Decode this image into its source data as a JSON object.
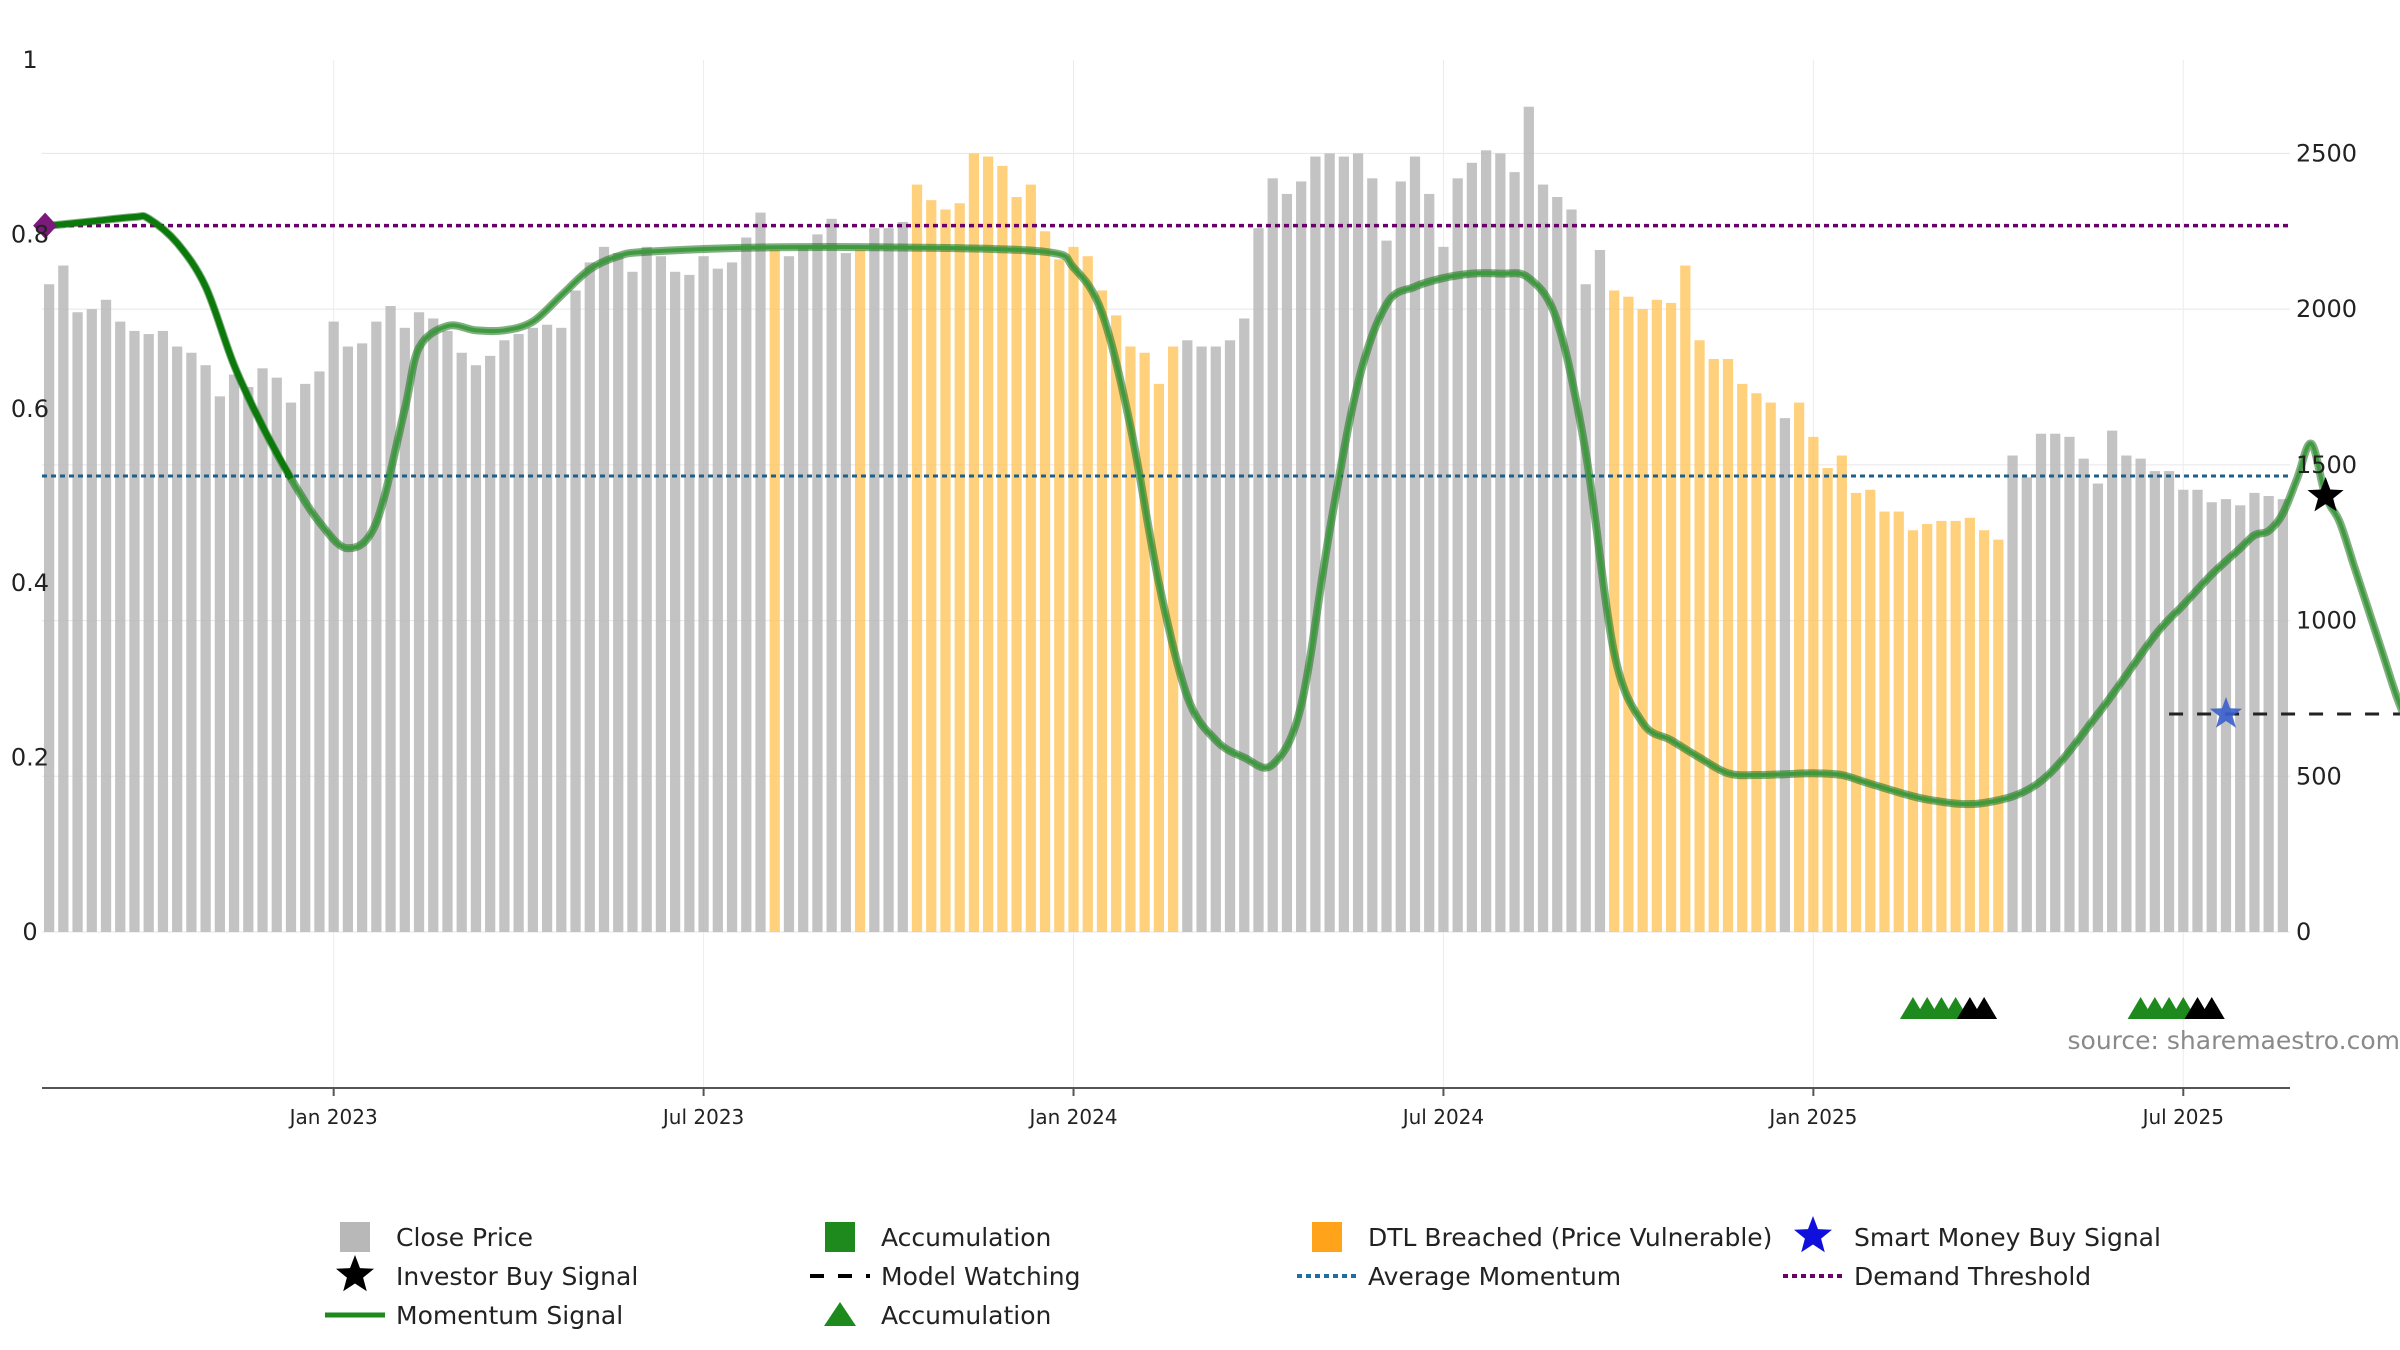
{
  "chart_data": {
    "type": "bar",
    "source_text": "source: sharemaestro.com",
    "x_ticks": [
      "Jan 2023",
      "Jul 2023",
      "Jan 2024",
      "Jul 2024",
      "Jan 2025",
      "Jul 2025"
    ],
    "x_tick_weeks": [
      20,
      46,
      72,
      98,
      124,
      150
    ],
    "left_axis": {
      "ticks": [
        "0",
        "0.2",
        "0.4",
        "0.6",
        "0.8",
        "1"
      ],
      "ylim": [
        0,
        1
      ]
    },
    "right_axis": {
      "ticks": [
        "0",
        "500",
        "1000",
        "1500",
        "2000",
        "2500"
      ],
      "ylim": [
        0,
        2800
      ]
    },
    "colors": {
      "close": "#b8b8b8",
      "accumulation": "#1e8a1e",
      "dtl": "#ffc65c",
      "momentum": "#2e8b2e",
      "average": "#1f5f8b",
      "demand": "#6a006a",
      "smart_money": "#1010dd",
      "investor": "#000000"
    },
    "bar_status_codes": {
      "g": "Close Price",
      "a": "Accumulation",
      "d": "DTL Breached (Price Vulnerable)"
    },
    "close_price": [
      2080,
      2140,
      1990,
      2000,
      2030,
      1960,
      1930,
      1920,
      1930,
      1880,
      1860,
      1820,
      1720,
      1790,
      1750,
      1810,
      1780,
      1700,
      1760,
      1800,
      1960,
      1880,
      1890,
      1960,
      2010,
      1940,
      1990,
      1970,
      1930,
      1860,
      1820,
      1850,
      1900,
      1920,
      1940,
      1950,
      1940,
      2060,
      2150,
      2200,
      2180,
      2120,
      2200,
      2170,
      2120,
      2110,
      2170,
      2130,
      2150,
      2230,
      2310,
      2190,
      2170,
      2200,
      2240,
      2290,
      2180,
      2190,
      2260,
      2260,
      2280,
      2400,
      2350,
      2320,
      2340,
      2500,
      2490,
      2460,
      2360,
      2400,
      2250,
      2160,
      2200,
      2170,
      2060,
      1980,
      1880,
      1860,
      1760,
      1880,
      1900,
      1880,
      1880,
      1900,
      1970,
      2260,
      2420,
      2370,
      2410,
      2490,
      2500,
      2490,
      2500,
      2420,
      2220,
      2410,
      2490,
      2370,
      2200,
      2420,
      2470,
      2510,
      2500,
      2440,
      2650,
      2400,
      2360,
      2320,
      2080,
      2190,
      2060,
      2040,
      2000,
      2030,
      2020,
      2140,
      1900,
      1840,
      1840,
      1760,
      1730,
      1700,
      1650,
      1700,
      1590,
      1490,
      1530,
      1410,
      1420,
      1350,
      1350,
      1290,
      1310,
      1320,
      1320,
      1330,
      1290,
      1260,
      1530,
      1460,
      1600,
      1600,
      1590,
      1520,
      1440,
      1610,
      1530,
      1520,
      1480,
      1480,
      1420,
      1420,
      1380,
      1390,
      1370,
      1410,
      1400,
      1390
    ],
    "bar_status": "gggggggggggggggggggggggggggggggggggggggggggggggggggdgggggdgggdddddddddddddddddddggggggggggggggggggggggggggggggddddddddddddgdddddddddddddddgggggggggggggggggggggaaaaaaggggggggggggggggaaaaaagggggggggg",
    "momentum_x": [
      0,
      3,
      6,
      7,
      9,
      11,
      13,
      15,
      17,
      19,
      21,
      23,
      25,
      26,
      28,
      30,
      32,
      34,
      36,
      38,
      40,
      42,
      50,
      60,
      70,
      72,
      74,
      76,
      78,
      80,
      82,
      84,
      86,
      88,
      90,
      92,
      94,
      96,
      98,
      100,
      102,
      104,
      106,
      108,
      110,
      112,
      114,
      116,
      118,
      120,
      122,
      124,
      126,
      128,
      132,
      136,
      140,
      144,
      148,
      150,
      152,
      154,
      155,
      156,
      157,
      158,
      159,
      160,
      161,
      162,
      163,
      164,
      165,
      166,
      167,
      168
    ],
    "momentum": [
      0.81,
      0.815,
      0.82,
      0.818,
      0.79,
      0.74,
      0.65,
      0.58,
      0.52,
      0.47,
      0.44,
      0.47,
      0.6,
      0.67,
      0.695,
      0.69,
      0.69,
      0.7,
      0.73,
      0.76,
      0.775,
      0.78,
      0.785,
      0.785,
      0.78,
      0.762,
      0.71,
      0.58,
      0.4,
      0.27,
      0.22,
      0.2,
      0.192,
      0.26,
      0.46,
      0.63,
      0.72,
      0.74,
      0.75,
      0.755,
      0.755,
      0.75,
      0.7,
      0.55,
      0.32,
      0.24,
      0.22,
      0.2,
      0.182,
      0.18,
      0.181,
      0.182,
      0.18,
      0.17,
      0.152,
      0.148,
      0.173,
      0.25,
      0.34,
      0.375,
      0.41,
      0.44,
      0.455,
      0.46,
      0.48,
      0.52,
      0.56,
      0.5,
      0.47,
      0.42,
      0.37,
      0.32,
      0.27,
      0.23,
      0.2,
      0.18
    ],
    "momentum_bright_until": 15,
    "average_momentum": 0.523,
    "demand_threshold": 0.81,
    "demand_marker_week": 0,
    "model_watching": {
      "level": 0.25,
      "from_week": 149,
      "to_week": 168
    },
    "smart_money_buy_signal": {
      "week": 153,
      "value": 0.25
    },
    "investor_buy_signal": {
      "week": 160,
      "value": 0.5
    },
    "accumulation_triangles": [
      {
        "week": 131,
        "color": "#1e8a1e"
      },
      {
        "week": 132,
        "color": "#1e8a1e"
      },
      {
        "week": 133,
        "color": "#1e8a1e"
      },
      {
        "week": 134,
        "color": "#1e8a1e"
      },
      {
        "week": 135,
        "color": "#000000"
      },
      {
        "week": 136,
        "color": "#000000"
      },
      {
        "week": 147,
        "color": "#1e8a1e"
      },
      {
        "week": 148,
        "color": "#1e8a1e"
      },
      {
        "week": 149,
        "color": "#1e8a1e"
      },
      {
        "week": 150,
        "color": "#1e8a1e"
      },
      {
        "week": 151,
        "color": "#000000"
      },
      {
        "week": 152,
        "color": "#000000"
      }
    ],
    "legend": [
      {
        "label": "Close Price",
        "symbol": "square",
        "color": "#b8b8b8",
        "column": 0,
        "row": 0
      },
      {
        "label": "Investor Buy Signal",
        "symbol": "star",
        "color": "#000000",
        "column": 0,
        "row": 1
      },
      {
        "label": "Momentum Signal",
        "symbol": "line",
        "color": "#1e8a1e",
        "column": 0,
        "row": 2
      },
      {
        "label": "Accumulation",
        "symbol": "square",
        "color": "#1e8a1e",
        "column": 1,
        "row": 0
      },
      {
        "label": "Model Watching",
        "symbol": "dash",
        "color": "#000000",
        "column": 1,
        "row": 1
      },
      {
        "label": "Accumulation",
        "symbol": "triangle",
        "color": "#1e8a1e",
        "column": 1,
        "row": 2
      },
      {
        "label": "DTL Breached (Price Vulnerable)",
        "symbol": "square",
        "color": "#ffa31a",
        "column": 2,
        "row": 0
      },
      {
        "label": "Average Momentum",
        "symbol": "dot-blue",
        "color": "#1f6fa0",
        "column": 2,
        "row": 1
      },
      {
        "label": "Smart Money Buy Signal",
        "symbol": "star",
        "color": "#1010dd",
        "column": 3,
        "row": 0
      },
      {
        "label": "Demand Threshold",
        "symbol": "dot-purple",
        "color": "#6a006a",
        "column": 3,
        "row": 1
      }
    ]
  }
}
